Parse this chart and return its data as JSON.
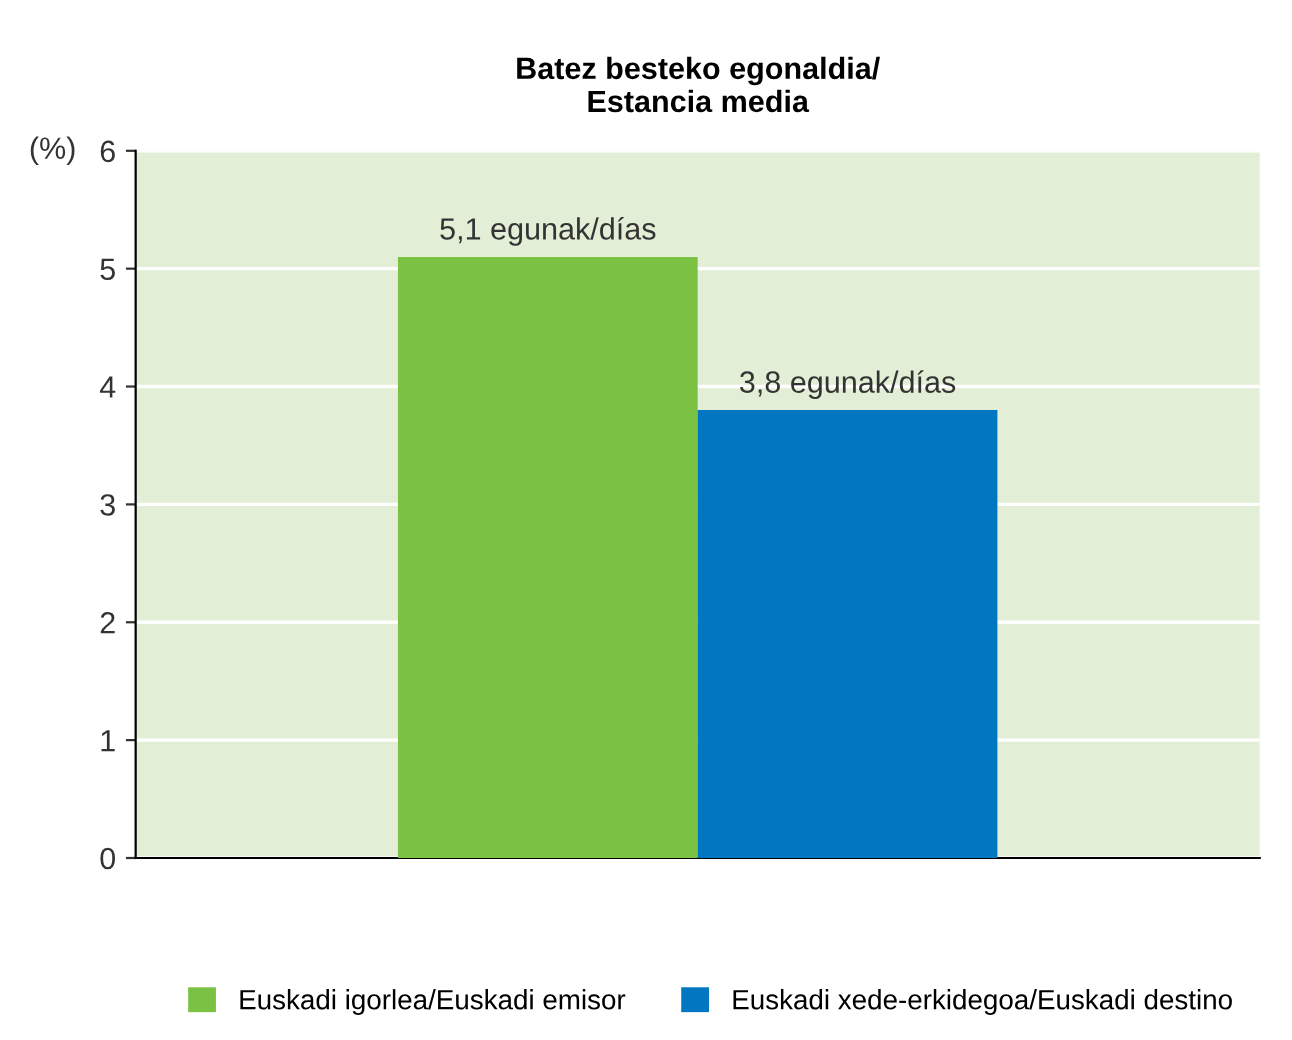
{
  "chart_data": {
    "type": "bar",
    "title": "Batez besteko egonaldia/\nEstancia media",
    "ylabel": "(%)",
    "categories": [
      null
    ],
    "series": [
      {
        "name": "Euskadi igorlea/Euskadi emisor",
        "color": "#7bc143",
        "values": [
          5.1
        ],
        "value_labels": [
          "5,1 egunak/días"
        ]
      },
      {
        "name": "Euskadi xede-erkidegoa/Euskadi destino",
        "color": "#0077c0",
        "values": [
          3.8
        ],
        "value_labels": [
          "3,8 egunak/días"
        ]
      }
    ],
    "ylim": [
      0,
      6
    ],
    "yticks": [
      0,
      1,
      2,
      3,
      4,
      5,
      6
    ],
    "grid": "y",
    "legend": "bottom"
  }
}
